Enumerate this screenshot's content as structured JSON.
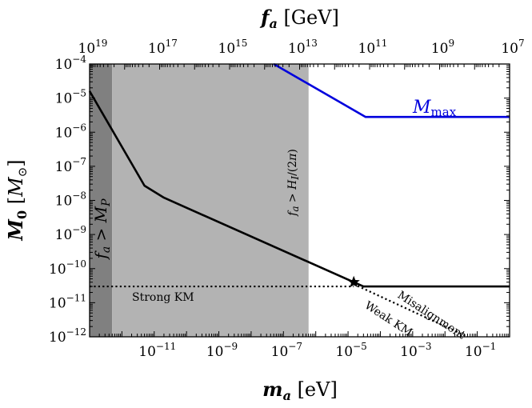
{
  "chart_data": {
    "type": "line",
    "xlabel": "m_a [eV]",
    "ylabel": "M_0 [M_⊙]",
    "top_xlabel": "f_a [GeV]",
    "x_scale": "log",
    "y_scale": "log",
    "xlim": [
      1e-13,
      1
    ],
    "ylim": [
      1e-12,
      0.0001
    ],
    "top_xlim": [
      1e+19,
      10000000.0
    ],
    "x_ticks": [
      {
        "value": 1e-11,
        "base": "10",
        "exp": "−11"
      },
      {
        "value": 1e-09,
        "base": "10",
        "exp": "−9"
      },
      {
        "value": 1e-07,
        "base": "10",
        "exp": "−7"
      },
      {
        "value": 1e-05,
        "base": "10",
        "exp": "−5"
      },
      {
        "value": 0.001,
        "base": "10",
        "exp": "−3"
      },
      {
        "value": 0.1,
        "base": "10",
        "exp": "−1"
      }
    ],
    "y_ticks": [
      {
        "value": 0.0001,
        "base": "10",
        "exp": "−4"
      },
      {
        "value": 1e-05,
        "base": "10",
        "exp": "−5"
      },
      {
        "value": 1e-06,
        "base": "10",
        "exp": "−6"
      },
      {
        "value": 1e-07,
        "base": "10",
        "exp": "−7"
      },
      {
        "value": 1e-08,
        "base": "10",
        "exp": "−8"
      },
      {
        "value": 1e-09,
        "base": "10",
        "exp": "−9"
      },
      {
        "value": 1e-10,
        "base": "10",
        "exp": "−10"
      },
      {
        "value": 1e-11,
        "base": "10",
        "exp": "−11"
      },
      {
        "value": 1e-12,
        "base": "10",
        "exp": "−12"
      }
    ],
    "top_ticks": [
      {
        "value": 1e+19,
        "base": "10",
        "exp": "19"
      },
      {
        "value": 1e+17,
        "base": "10",
        "exp": "17"
      },
      {
        "value": 1000000000000000.0,
        "base": "10",
        "exp": "15"
      },
      {
        "value": 10000000000000.0,
        "base": "10",
        "exp": "13"
      },
      {
        "value": 100000000000.0,
        "base": "10",
        "exp": "11"
      },
      {
        "value": 1000000000.0,
        "base": "10",
        "exp": "9"
      },
      {
        "value": 10000000.0,
        "base": "10",
        "exp": "7"
      }
    ],
    "regions": [
      {
        "label": "f_a > M_P",
        "x_range": [
          1e-13,
          5e-13
        ],
        "color": "#808080"
      },
      {
        "label": "f_a > H_I/(2π)",
        "x_range": [
          5e-13,
          6e-07
        ],
        "color": "#b3b3b3"
      }
    ],
    "series": [
      {
        "name": "M_max",
        "color": "#0000dd",
        "style": "solid",
        "points": [
          [
            5e-08,
            0.0001
          ],
          [
            3.5e-05,
            2.8e-06
          ],
          [
            1,
            2.8e-06
          ]
        ]
      },
      {
        "name": "",
        "color": "#000000",
        "style": "solid",
        "points": [
          [
            1e-13,
            1.6e-05
          ],
          [
            5e-12,
            2.7e-08
          ],
          [
            2e-11,
            1.2e-08
          ],
          [
            1.5e-05,
            4e-11
          ],
          [
            3e-05,
            3e-11
          ],
          [
            1,
            3e-11
          ]
        ]
      },
      {
        "name": "Strong KM",
        "color": "#000000",
        "style": "dotted",
        "points": [
          [
            1e-13,
            3e-11
          ],
          [
            1.5e-05,
            3e-11
          ]
        ]
      },
      {
        "name": "Misalignment / Weak KM",
        "color": "#000000",
        "style": "dotted",
        "points": [
          [
            1.5e-05,
            3.5e-11
          ],
          [
            0.05,
            1e-12
          ]
        ]
      }
    ],
    "marker": {
      "shape": "star",
      "point": [
        1.5e-05,
        4e-11
      ]
    },
    "annotations": {
      "region_mp": "f_a > M_P",
      "region_hi": "f_a > H_I/(2π)",
      "mmax_label": "M_max",
      "strong_km": "Strong KM",
      "misalignment": "Misalignment",
      "weak_km": "Weak KM"
    },
    "grid": false,
    "legend": "none"
  }
}
